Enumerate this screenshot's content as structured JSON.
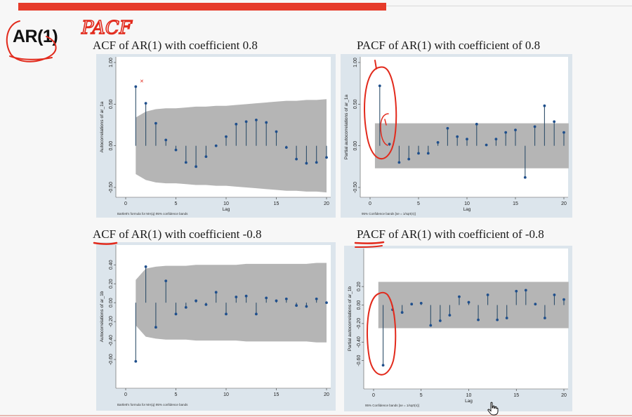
{
  "slide": {
    "heading": "AR(1)",
    "handwritten_note": "PACF"
  },
  "colors": {
    "band": "#b5b5b5",
    "spike": "#2f4f6a",
    "marker": "#1f4f8c",
    "panel": "#dce5ec",
    "annotation": "#e22a1c",
    "accent_bar": "#e63b2a"
  },
  "chart_data": [
    {
      "type": "stem",
      "id": "acf-pos",
      "title": "ACF of AR(1) with coefficient 0.8",
      "ylabel": "Autocorrelations of ar_1a",
      "xlabel": "Lag",
      "note": "Bartlett's formula for MA(q) 95% confidence bands",
      "xlim": [
        0,
        20
      ],
      "ylim": [
        -0.5,
        1.0
      ],
      "yticks": [
        "1.00",
        "0.50",
        "0.00",
        "-0.50"
      ],
      "ytick_values": [
        1.0,
        0.5,
        0.0,
        -0.5
      ],
      "xticks": [
        "0",
        "5",
        "10",
        "15",
        "20"
      ],
      "lags": [
        1,
        2,
        3,
        4,
        5,
        6,
        7,
        8,
        9,
        10,
        11,
        12,
        13,
        14,
        15,
        16,
        17,
        18,
        19,
        20
      ],
      "values": [
        0.71,
        0.51,
        0.27,
        0.07,
        -0.05,
        -0.2,
        -0.25,
        -0.13,
        0.0,
        0.11,
        0.26,
        0.29,
        0.31,
        0.28,
        0.17,
        -0.02,
        -0.16,
        -0.21,
        -0.2,
        -0.14
      ],
      "band": [
        0.34,
        0.41,
        0.44,
        0.45,
        0.45,
        0.46,
        0.47,
        0.47,
        0.48,
        0.48,
        0.49,
        0.5,
        0.51,
        0.52,
        0.53,
        0.54,
        0.54,
        0.55,
        0.55,
        0.56
      ]
    },
    {
      "type": "stem",
      "id": "pacf-pos",
      "title": "PACF of AR(1) with coefficient of 0.8",
      "ylabel": "Partial autocorrelations of ar_1a",
      "xlabel": "Lag",
      "note": "95% Confidence bands [se = 1/sqrt(n)]",
      "xlim": [
        0,
        20
      ],
      "ylim": [
        -0.5,
        1.0
      ],
      "yticks": [
        "1.00",
        "0.50",
        "0.00",
        "-0.50"
      ],
      "ytick_values": [
        1.0,
        0.5,
        0.0,
        -0.5
      ],
      "xticks": [
        "0",
        "5",
        "10",
        "15",
        "20"
      ],
      "lags": [
        1,
        2,
        3,
        4,
        5,
        6,
        7,
        8,
        9,
        10,
        11,
        12,
        13,
        14,
        15,
        16,
        17,
        18,
        19,
        20
      ],
      "values": [
        0.72,
        0.02,
        -0.2,
        -0.16,
        -0.09,
        -0.09,
        0.04,
        0.21,
        0.11,
        0.08,
        0.26,
        0.01,
        0.08,
        0.16,
        0.19,
        -0.38,
        0.23,
        0.48,
        0.29,
        0.16
      ],
      "band_constant": 0.27
    },
    {
      "type": "stem",
      "id": "acf-neg",
      "title": "ACF of AR(1) with coefficient -0.8",
      "ylabel": "Autocorrelations of ar_1b",
      "xlabel": "",
      "note": "Bartlett's formula for MA(q) 95% confidence bands",
      "xlim": [
        0,
        20
      ],
      "ylim": [
        -0.8,
        0.55
      ],
      "yticks": [
        "-0.60",
        "-0.40",
        "-0.20",
        "0.00",
        "0.20",
        "0.40"
      ],
      "ytick_values": [
        -0.6,
        -0.4,
        -0.2,
        0.0,
        0.2,
        0.4
      ],
      "xticks": [
        "0",
        "5",
        "10",
        "15",
        "20"
      ],
      "lags": [
        1,
        2,
        3,
        4,
        5,
        6,
        7,
        8,
        9,
        10,
        11,
        12,
        13,
        14,
        15,
        16,
        17,
        18,
        19,
        20
      ],
      "values": [
        -0.62,
        0.38,
        -0.26,
        0.23,
        -0.12,
        -0.05,
        0.02,
        -0.02,
        0.11,
        -0.12,
        0.06,
        0.07,
        -0.12,
        0.05,
        0.02,
        0.04,
        -0.03,
        -0.04,
        0.04,
        0.0
      ],
      "band": [
        0.24,
        0.36,
        0.38,
        0.39,
        0.39,
        0.39,
        0.4,
        0.4,
        0.4,
        0.4,
        0.4,
        0.41,
        0.41,
        0.41,
        0.41,
        0.41,
        0.41,
        0.41,
        0.42,
        0.42
      ]
    },
    {
      "type": "stem",
      "id": "pacf-neg",
      "title": "PACF of AR(1) with coefficient of -0.8",
      "ylabel": "Partial autocorrelations of ar_1b",
      "xlabel": "Lag",
      "note": "95% Confidence bands [se = 1/sqrt(n)]",
      "xlim": [
        0,
        20
      ],
      "ylim": [
        -0.8,
        0.55
      ],
      "yticks": [
        "-0.60",
        "-0.40",
        "-0.20",
        "0.00",
        "0.20"
      ],
      "ytick_values": [
        -0.6,
        -0.4,
        -0.2,
        0.0,
        0.2
      ],
      "xticks": [
        "0",
        "5",
        "10",
        "15",
        "20"
      ],
      "lags": [
        1,
        2,
        3,
        4,
        5,
        6,
        7,
        8,
        9,
        10,
        11,
        12,
        13,
        14,
        15,
        16,
        17,
        18,
        19,
        20
      ],
      "values": [
        -0.65,
        -0.05,
        -0.08,
        0.01,
        0.02,
        -0.22,
        -0.17,
        -0.11,
        0.09,
        0.03,
        -0.16,
        0.11,
        -0.16,
        -0.14,
        0.15,
        0.16,
        0.01,
        -0.14,
        0.11,
        0.06
      ],
      "band_constant": 0.25
    }
  ]
}
